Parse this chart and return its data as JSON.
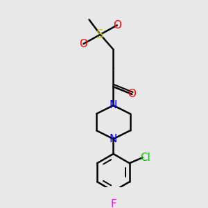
{
  "background_color": "#e8e8e8",
  "line_color": "#000000",
  "atom_colors": {
    "O": "#ff0000",
    "S": "#cccc00",
    "N": "#0000ff",
    "Cl": "#00cc00",
    "F": "#ff00ff"
  },
  "line_width": 1.8,
  "font_size": 11
}
